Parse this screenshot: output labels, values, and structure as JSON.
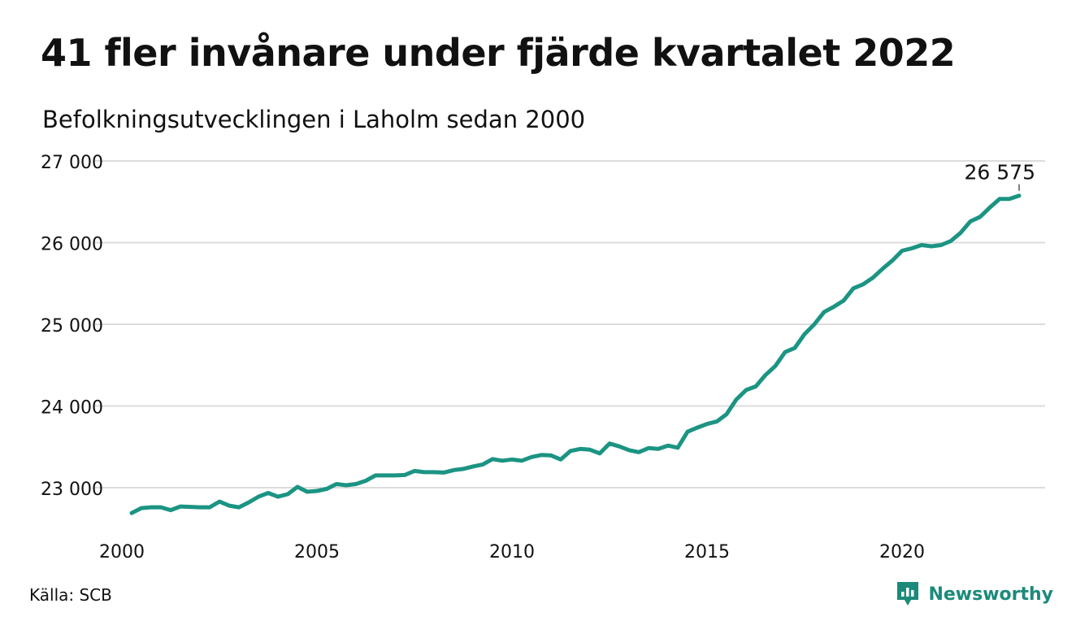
{
  "title": "41 fler invånare under fjärde kvartalet 2022",
  "subtitle": "Befolkningsutvecklingen i Laholm sedan 2000",
  "source": "Källa: SCB",
  "brand": {
    "name": "Newsworthy",
    "icon": "newsworthy-logo-icon"
  },
  "colors": {
    "line": "#1b9483",
    "grid": "#dcdcdc",
    "text": "#111111",
    "brand": "#1b8a7a"
  },
  "chart_data": {
    "type": "line",
    "title": "41 fler invånare under fjärde kvartalet 2022",
    "subtitle": "Befolkningsutvecklingen i Laholm sedan 2000",
    "xlabel": "",
    "ylabel": "",
    "xlim": [
      2000,
      2023.25
    ],
    "ylim": [
      22500,
      27000
    ],
    "x_ticks": [
      2000,
      2005,
      2010,
      2015,
      2020
    ],
    "x_tick_labels": [
      "2000",
      "2005",
      "2010",
      "2015",
      "2020"
    ],
    "y_ticks": [
      23000,
      24000,
      25000,
      26000,
      27000
    ],
    "y_tick_labels": [
      "23 000",
      "24 000",
      "25 000",
      "26 000",
      "27 000"
    ],
    "grid": true,
    "end_label": "26 575",
    "series": [
      {
        "name": "",
        "x": [
          2000.25,
          2000.5,
          2000.75,
          2001.0,
          2001.25,
          2001.5,
          2001.75,
          2002.0,
          2002.25,
          2002.5,
          2002.75,
          2003.0,
          2003.25,
          2003.5,
          2003.75,
          2004.0,
          2004.25,
          2004.5,
          2004.75,
          2005.0,
          2005.25,
          2005.5,
          2005.75,
          2006.0,
          2006.25,
          2006.5,
          2006.75,
          2007.0,
          2007.25,
          2007.5,
          2007.75,
          2008.0,
          2008.25,
          2008.5,
          2008.75,
          2009.0,
          2009.25,
          2009.5,
          2009.75,
          2010.0,
          2010.25,
          2010.5,
          2010.75,
          2011.0,
          2011.25,
          2011.5,
          2011.75,
          2012.0,
          2012.25,
          2012.5,
          2012.75,
          2013.0,
          2013.25,
          2013.5,
          2013.75,
          2014.0,
          2014.25,
          2014.5,
          2014.75,
          2015.0,
          2015.25,
          2015.5,
          2015.75,
          2016.0,
          2016.25,
          2016.5,
          2016.75,
          2017.0,
          2017.25,
          2017.5,
          2017.75,
          2018.0,
          2018.25,
          2018.5,
          2018.75,
          2019.0,
          2019.25,
          2019.5,
          2019.75,
          2020.0,
          2020.25,
          2020.5,
          2020.75,
          2021.0,
          2021.25,
          2021.5,
          2021.75,
          2022.0,
          2022.25,
          2022.5,
          2022.75,
          2023.0
        ],
        "values": [
          22690,
          22750,
          22760,
          22760,
          22725,
          22770,
          22765,
          22760,
          22760,
          22830,
          22780,
          22760,
          22820,
          22890,
          22935,
          22890,
          22920,
          23010,
          22950,
          22960,
          22985,
          23045,
          23030,
          23045,
          23085,
          23150,
          23150,
          23150,
          23155,
          23205,
          23190,
          23190,
          23185,
          23215,
          23230,
          23260,
          23285,
          23350,
          23330,
          23345,
          23330,
          23375,
          23400,
          23395,
          23345,
          23450,
          23475,
          23465,
          23420,
          23540,
          23505,
          23460,
          23435,
          23485,
          23475,
          23515,
          23490,
          23685,
          23735,
          23780,
          23810,
          23900,
          24080,
          24195,
          24240,
          24380,
          24490,
          24660,
          24710,
          24880,
          25000,
          25150,
          25215,
          25290,
          25440,
          25490,
          25570,
          25680,
          25780,
          25900,
          25930,
          25970,
          25955,
          25970,
          26020,
          26120,
          26260,
          26315,
          26430,
          26535,
          26535,
          26575
        ]
      }
    ]
  }
}
